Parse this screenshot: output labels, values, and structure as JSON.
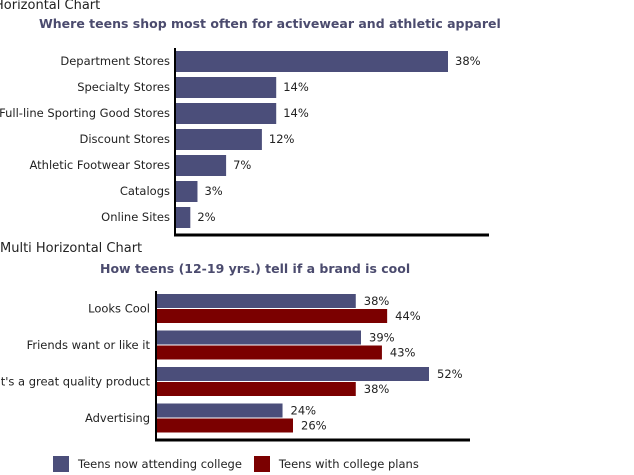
{
  "colors": {
    "series1": "#4b4e7a",
    "series2": "#7b0000",
    "axis": "#000000"
  },
  "chart_data": [
    {
      "type": "bar",
      "orientation": "horizontal",
      "section_label": "Horizontal Chart",
      "title": "Where teens shop most often for activewear and athletic apparel",
      "categories": [
        "Department Stores",
        "Specialty Stores",
        "Full-line Sporting Good Stores",
        "Discount Stores",
        "Athletic Footwear Stores",
        "Catalogs",
        "Online Sites"
      ],
      "values": [
        38,
        14,
        14,
        12,
        7,
        3,
        2
      ],
      "value_labels": [
        "38%",
        "14%",
        "14%",
        "12%",
        "7%",
        "3%",
        "2%"
      ],
      "xlim": [
        0,
        40
      ]
    },
    {
      "type": "bar",
      "orientation": "horizontal",
      "section_label": "Multi Horizontal Chart",
      "title": "How teens (12-19 yrs.) tell if a brand is cool",
      "categories": [
        "Looks Cool",
        "Friends want or like it",
        "It's a great quality product",
        "Advertising"
      ],
      "series": [
        {
          "name": "Teens now attending college",
          "values": [
            38,
            39,
            52,
            24
          ],
          "value_labels": [
            "38%",
            "39%",
            "52%",
            "24%"
          ]
        },
        {
          "name": "Teens with college plans",
          "values": [
            44,
            43,
            38,
            26
          ],
          "value_labels": [
            "44%",
            "43%",
            "38%",
            "26%"
          ]
        }
      ],
      "xlim": [
        0,
        60
      ],
      "legend_position": "bottom"
    }
  ]
}
